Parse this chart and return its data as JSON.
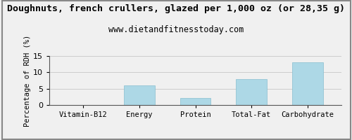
{
  "title": "Doughnuts, french crullers, glazed per 1,000 oz (or 28,35 g)",
  "subtitle": "www.dietandfitnesstoday.com",
  "categories": [
    "Vitamin-B12",
    "Energy",
    "Protein",
    "Total-Fat",
    "Carbohydrate"
  ],
  "values": [
    0,
    6.1,
    2.1,
    8.0,
    13.0
  ],
  "bar_color": "#add8e6",
  "ylabel": "Percentage of RDH (%)",
  "ylim": [
    0,
    15
  ],
  "yticks": [
    0,
    5,
    10,
    15
  ],
  "title_fontsize": 9.5,
  "subtitle_fontsize": 8.5,
  "ylabel_fontsize": 7.5,
  "xlabel_fontsize": 7.5,
  "tick_fontsize": 8,
  "background_color": "#f0f0f0",
  "grid_color": "#cccccc",
  "border_color": "#888888",
  "bar_width": 0.55
}
